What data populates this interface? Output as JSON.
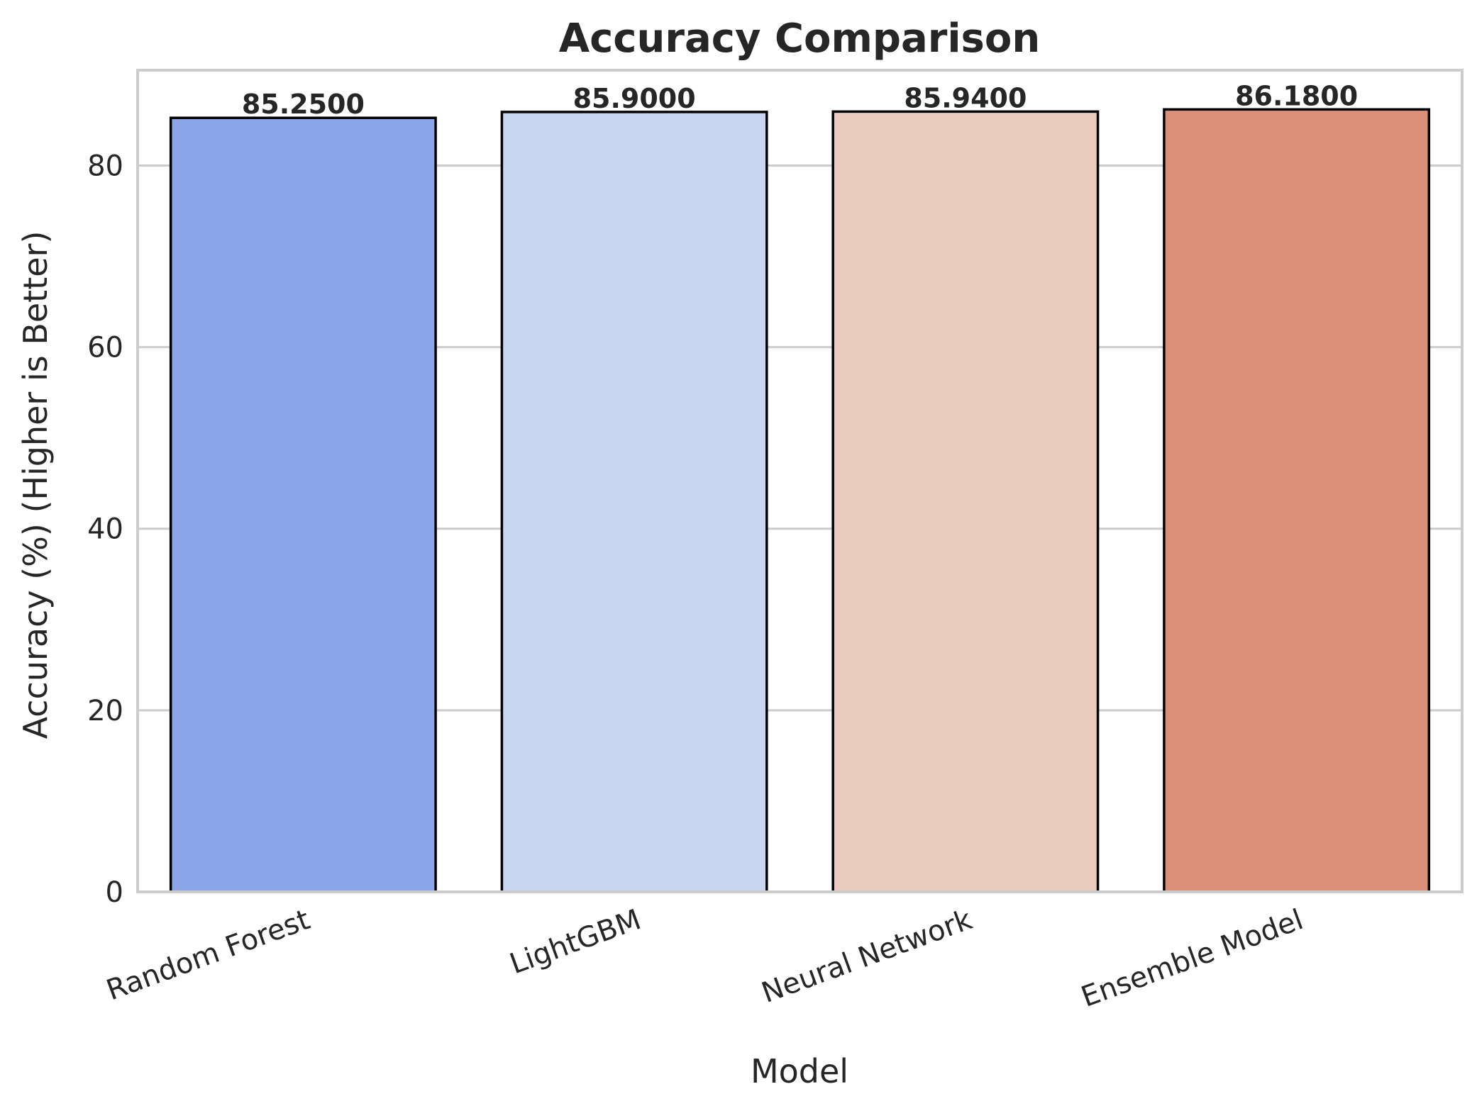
{
  "chart_data": {
    "type": "bar",
    "title": "Accuracy Comparison",
    "xlabel": "Model",
    "ylabel": "Accuracy (%) (Higher is Better)",
    "categories": [
      "Random Forest",
      "LightGBM",
      "Neural Network",
      "Ensemble Model"
    ],
    "values": [
      85.25,
      85.9,
      85.94,
      86.18
    ],
    "value_labels": [
      "85.2500",
      "85.9000",
      "85.9400",
      "86.1800"
    ],
    "colors": [
      "#8aa5e8",
      "#c7d5ee",
      "#eaccbe",
      "#dc8e78"
    ],
    "ylim": [
      0,
      90.5
    ],
    "yticks": [
      0,
      20,
      40,
      60,
      80
    ],
    "ytick_labels": [
      "0",
      "20",
      "40",
      "60",
      "80"
    ],
    "grid": "horizontal",
    "legend": "none"
  }
}
